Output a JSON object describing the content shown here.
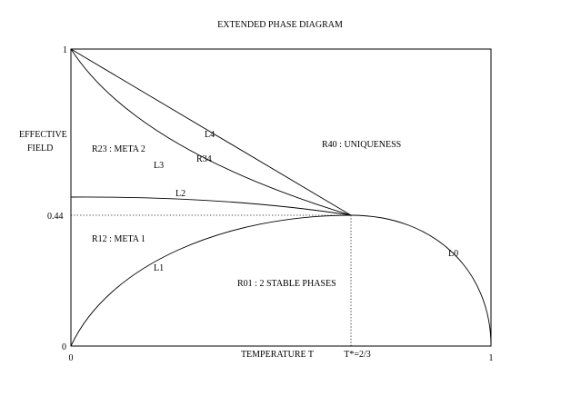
{
  "diagram": {
    "title": "EXTENDED PHASE DIAGRAM",
    "xlabel": "TEMPERATURE T",
    "ylabel_line1": "EFFECTIVE",
    "ylabel_line2": "FIELD",
    "x_ticks": {
      "min": "0",
      "max": "1",
      "special": "T*=2/3"
    },
    "y_ticks": {
      "min": "0",
      "max": "1",
      "special": "0.44"
    },
    "curves": [
      {
        "label": "L0"
      },
      {
        "label": "L1"
      },
      {
        "label": "L2"
      },
      {
        "label": "L3"
      },
      {
        "label": "L4"
      }
    ],
    "regions": {
      "r40": "R40 : UNIQUENESS",
      "r23": "R23 : META 2",
      "r34": "R34",
      "r12": "R12 : META 1",
      "r01": "R01 : 2 STABLE PHASES"
    },
    "critical_point": {
      "T": 0.6667,
      "h": 0.44
    },
    "axes": {
      "xlim": [
        0,
        1
      ],
      "ylim": [
        0,
        1
      ]
    }
  }
}
